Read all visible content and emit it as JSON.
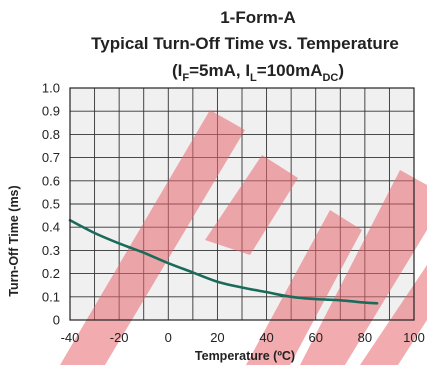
{
  "chart_data": {
    "type": "line",
    "title_line1": "1-Form-A",
    "title_line2": "Typical Turn-Off Time vs. Temperature",
    "title_line3": {
      "open": "(I",
      "sub1": "F",
      "mid": "=5mA, I",
      "sub2": "L",
      "mid2": "=100mA",
      "sub3": "DC",
      "close": ")"
    },
    "xlabel": "Temperature (ºC)",
    "ylabel": "Turn-Off Time (ms)",
    "xlim": [
      -40,
      100
    ],
    "ylim": [
      0,
      1.0
    ],
    "x_ticks": [
      "-40",
      "-20",
      "0",
      "20",
      "40",
      "60",
      "80",
      "100"
    ],
    "y_ticks": [
      "0",
      "0.1",
      "0.2",
      "0.3",
      "0.4",
      "0.5",
      "0.6",
      "0.7",
      "0.8",
      "0.9",
      "1.0"
    ],
    "grid": true,
    "series": [
      {
        "color": "#1b6b5b",
        "x": [
          -40,
          -30,
          -20,
          -10,
          0,
          10,
          20,
          30,
          40,
          50,
          60,
          70,
          80,
          85
        ],
        "y": [
          0.43,
          0.375,
          0.33,
          0.29,
          0.245,
          0.205,
          0.165,
          0.14,
          0.12,
          0.1,
          0.09,
          0.085,
          0.075,
          0.072
        ]
      }
    ],
    "watermark_color": "#e8686e"
  }
}
